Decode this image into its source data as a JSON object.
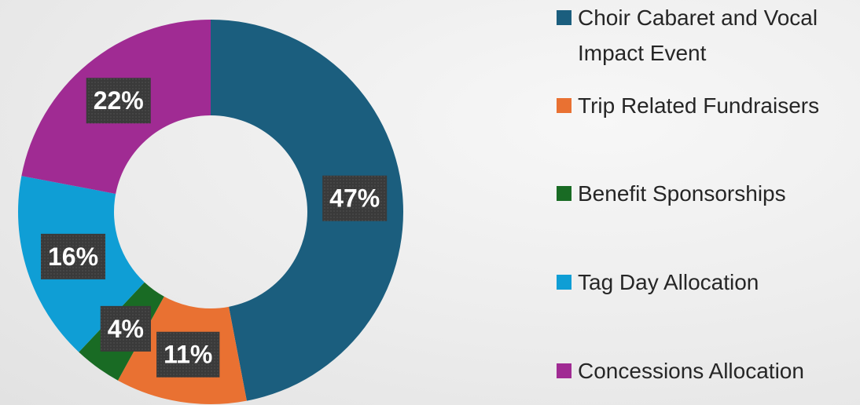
{
  "chart_data": {
    "type": "donut",
    "categories": [
      "Choir Cabaret and Vocal Impact Event",
      "Trip Related Fundraisers",
      "Benefit Sponsorships",
      "Tag Day Allocation",
      "Concessions Allocation"
    ],
    "values": [
      47,
      11,
      4,
      16,
      22
    ],
    "value_labels": [
      "47%",
      "11%",
      "4%",
      "16%",
      "22%"
    ],
    "colors": [
      "#1b5e7e",
      "#e97132",
      "#196b24",
      "#0f9ed5",
      "#a02b93"
    ],
    "legend": "right"
  }
}
